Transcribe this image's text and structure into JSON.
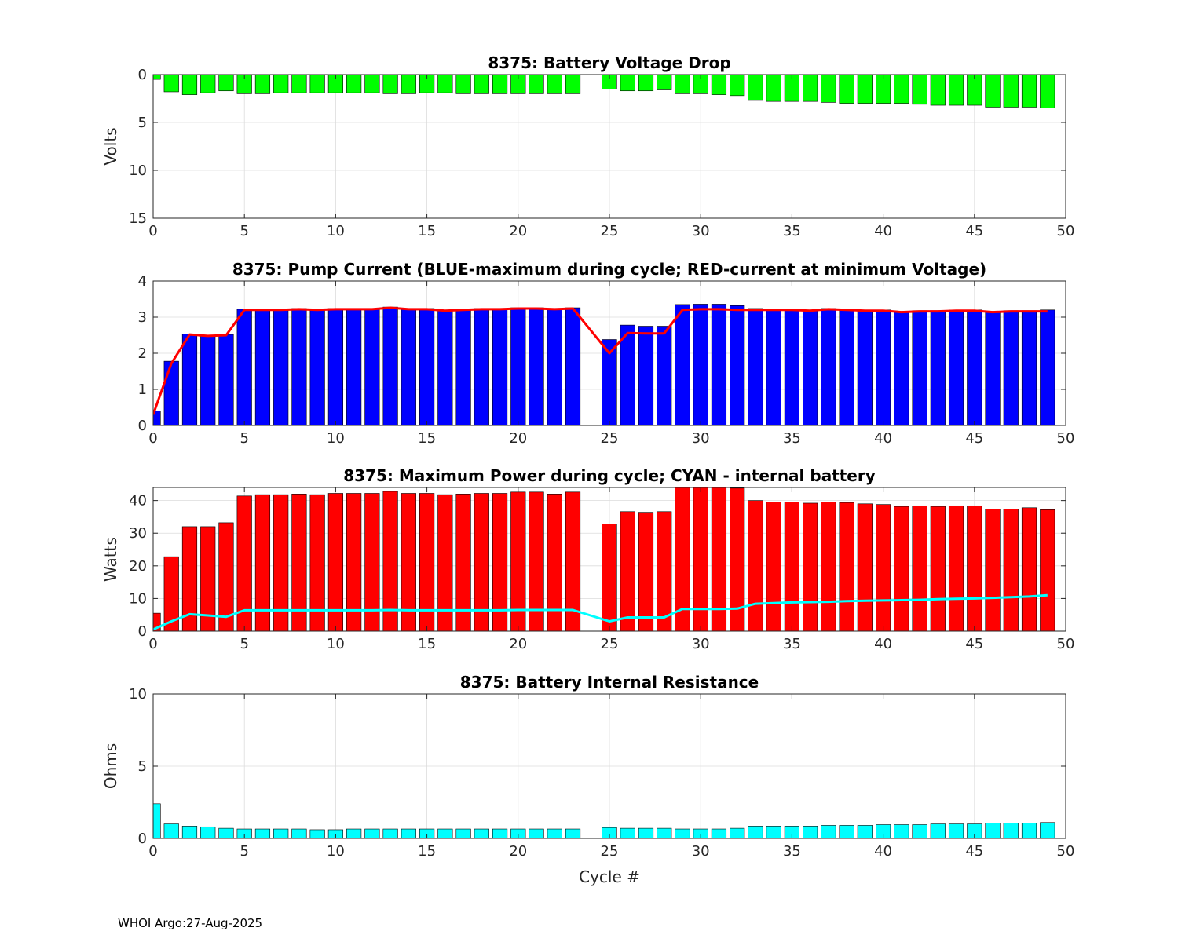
{
  "footer": "WHOI Argo:27-Aug-2025",
  "colors": {
    "green": "#00ff00",
    "blue": "#0000ff",
    "red": "#ff0000",
    "cyan": "#00ffff",
    "grid": "#dcdcdc"
  },
  "chart_data": [
    {
      "type": "bar",
      "title": "8375: Battery Voltage Drop",
      "xlabel": "",
      "ylabel": "Volts",
      "xlim": [
        0,
        50
      ],
      "ylim": [
        0,
        15
      ],
      "y_reversed": true,
      "xticks": [
        0,
        5,
        10,
        15,
        20,
        25,
        30,
        35,
        40,
        45,
        50
      ],
      "yticks": [
        0,
        5,
        10,
        15
      ],
      "grid": true,
      "bar_color": "#00ff00",
      "x": [
        0,
        1,
        2,
        3,
        4,
        5,
        6,
        7,
        8,
        9,
        10,
        11,
        12,
        13,
        14,
        15,
        16,
        17,
        18,
        19,
        20,
        21,
        22,
        23,
        25,
        26,
        27,
        28,
        29,
        30,
        31,
        32,
        33,
        34,
        35,
        36,
        37,
        38,
        39,
        40,
        41,
        42,
        43,
        44,
        45,
        46,
        47,
        48,
        49
      ],
      "values": [
        0.5,
        1.8,
        2.1,
        1.9,
        1.7,
        2.0,
        2.0,
        1.9,
        1.9,
        1.9,
        1.9,
        1.9,
        1.9,
        2.0,
        2.0,
        1.9,
        1.9,
        2.0,
        2.0,
        2.0,
        2.0,
        2.0,
        2.0,
        2.0,
        1.5,
        1.7,
        1.7,
        1.6,
        2.0,
        2.0,
        2.1,
        2.2,
        2.7,
        2.8,
        2.8,
        2.8,
        2.9,
        3.0,
        3.0,
        3.0,
        3.0,
        3.1,
        3.2,
        3.2,
        3.2,
        3.4,
        3.4,
        3.4,
        3.5
      ]
    },
    {
      "type": "bar",
      "title": "8375: Pump Current (BLUE-maximum during cycle; RED-current at minimum Voltage)",
      "xlabel": "",
      "ylabel": "",
      "xlim": [
        0,
        50
      ],
      "ylim": [
        0,
        4
      ],
      "xticks": [
        0,
        5,
        10,
        15,
        20,
        25,
        30,
        35,
        40,
        45,
        50
      ],
      "yticks": [
        0,
        1,
        2,
        3,
        4
      ],
      "grid": true,
      "bar_color": "#0000ff",
      "line_color": "#ff0000",
      "x": [
        0,
        1,
        2,
        3,
        4,
        5,
        6,
        7,
        8,
        9,
        10,
        11,
        12,
        13,
        14,
        15,
        16,
        17,
        18,
        19,
        20,
        21,
        22,
        23,
        25,
        26,
        27,
        28,
        29,
        30,
        31,
        32,
        33,
        34,
        35,
        36,
        37,
        38,
        39,
        40,
        41,
        42,
        43,
        44,
        45,
        46,
        47,
        48,
        49
      ],
      "series": [
        {
          "name": "maximum during cycle",
          "kind": "bar",
          "values": [
            0.4,
            1.78,
            2.53,
            2.5,
            2.52,
            3.22,
            3.22,
            3.22,
            3.24,
            3.22,
            3.24,
            3.24,
            3.24,
            3.28,
            3.24,
            3.24,
            3.2,
            3.22,
            3.24,
            3.24,
            3.26,
            3.26,
            3.24,
            3.26,
            2.38,
            2.78,
            2.75,
            2.75,
            3.35,
            3.36,
            3.36,
            3.32,
            3.24,
            3.22,
            3.22,
            3.2,
            3.24,
            3.22,
            3.2,
            3.2,
            3.16,
            3.18,
            3.18,
            3.2,
            3.2,
            3.16,
            3.18,
            3.18,
            3.2
          ]
        },
        {
          "name": "current at minimum Voltage",
          "kind": "line",
          "values": [
            0.3,
            1.72,
            2.52,
            2.48,
            2.5,
            3.2,
            3.2,
            3.2,
            3.22,
            3.2,
            3.22,
            3.22,
            3.22,
            3.26,
            3.22,
            3.22,
            3.18,
            3.2,
            3.22,
            3.22,
            3.24,
            3.24,
            3.22,
            3.24,
            2.0,
            2.56,
            2.55,
            2.55,
            3.2,
            3.22,
            3.22,
            3.2,
            3.2,
            3.2,
            3.2,
            3.18,
            3.22,
            3.2,
            3.18,
            3.18,
            3.14,
            3.16,
            3.16,
            3.18,
            3.18,
            3.14,
            3.16,
            3.16,
            3.16
          ]
        }
      ]
    },
    {
      "type": "bar",
      "title": "8375: Maximum Power during cycle; CYAN - internal battery",
      "xlabel": "",
      "ylabel": "Watts",
      "xlim": [
        0,
        50
      ],
      "ylim": [
        0,
        44
      ],
      "xticks": [
        0,
        5,
        10,
        15,
        20,
        25,
        30,
        35,
        40,
        45,
        50
      ],
      "yticks": [
        0,
        10,
        20,
        30,
        40
      ],
      "grid": true,
      "bar_color": "#ff0000",
      "line_color": "#00ffff",
      "x": [
        0,
        1,
        2,
        3,
        4,
        5,
        6,
        7,
        8,
        9,
        10,
        11,
        12,
        13,
        14,
        15,
        16,
        17,
        18,
        19,
        20,
        21,
        22,
        23,
        25,
        26,
        27,
        28,
        29,
        30,
        31,
        32,
        33,
        34,
        35,
        36,
        37,
        38,
        39,
        40,
        41,
        42,
        43,
        44,
        45,
        46,
        47,
        48,
        49
      ],
      "series": [
        {
          "name": "Maximum Power",
          "kind": "bar",
          "values": [
            5.5,
            22.8,
            32.0,
            32.0,
            33.2,
            41.4,
            41.8,
            41.8,
            42.0,
            41.8,
            42.2,
            42.2,
            42.2,
            42.8,
            42.2,
            42.2,
            41.8,
            42.0,
            42.2,
            42.2,
            42.6,
            42.6,
            42.0,
            42.6,
            32.8,
            36.6,
            36.4,
            36.6,
            44.5,
            44.6,
            44.8,
            43.8,
            40.0,
            39.6,
            39.6,
            39.2,
            39.6,
            39.4,
            39.0,
            38.8,
            38.2,
            38.4,
            38.2,
            38.4,
            38.4,
            37.4,
            37.4,
            37.8,
            37.2
          ]
        },
        {
          "name": "internal battery",
          "kind": "line",
          "values": [
            0.5,
            3.0,
            5.2,
            4.8,
            4.4,
            6.4,
            6.4,
            6.4,
            6.4,
            6.4,
            6.4,
            6.4,
            6.4,
            6.5,
            6.4,
            6.4,
            6.4,
            6.4,
            6.4,
            6.4,
            6.5,
            6.5,
            6.5,
            6.5,
            3.0,
            4.2,
            4.2,
            4.2,
            6.8,
            6.8,
            6.8,
            6.9,
            8.4,
            8.6,
            8.8,
            8.9,
            9.0,
            9.2,
            9.3,
            9.4,
            9.5,
            9.6,
            9.8,
            9.9,
            10.0,
            10.2,
            10.4,
            10.6,
            11.0
          ]
        }
      ]
    },
    {
      "type": "bar",
      "title": "8375: Battery Internal Resistance",
      "xlabel": "Cycle #",
      "ylabel": "Ohms",
      "xlim": [
        0,
        50
      ],
      "ylim": [
        0,
        10
      ],
      "xticks": [
        0,
        5,
        10,
        15,
        20,
        25,
        30,
        35,
        40,
        45,
        50
      ],
      "yticks": [
        0,
        5,
        10
      ],
      "grid": true,
      "bar_color": "#00ffff",
      "x": [
        0,
        1,
        2,
        3,
        4,
        5,
        6,
        7,
        8,
        9,
        10,
        11,
        12,
        13,
        14,
        15,
        16,
        17,
        18,
        19,
        20,
        21,
        22,
        23,
        25,
        26,
        27,
        28,
        29,
        30,
        31,
        32,
        33,
        34,
        35,
        36,
        37,
        38,
        39,
        40,
        41,
        42,
        43,
        44,
        45,
        46,
        47,
        48,
        49
      ],
      "values": [
        2.4,
        1.0,
        0.85,
        0.8,
        0.7,
        0.65,
        0.65,
        0.65,
        0.65,
        0.6,
        0.6,
        0.65,
        0.65,
        0.65,
        0.65,
        0.65,
        0.65,
        0.65,
        0.65,
        0.65,
        0.65,
        0.65,
        0.65,
        0.65,
        0.75,
        0.7,
        0.7,
        0.7,
        0.65,
        0.65,
        0.65,
        0.7,
        0.85,
        0.85,
        0.85,
        0.85,
        0.9,
        0.9,
        0.9,
        0.95,
        0.95,
        0.95,
        1.0,
        1.0,
        1.0,
        1.05,
        1.05,
        1.05,
        1.1
      ]
    }
  ]
}
